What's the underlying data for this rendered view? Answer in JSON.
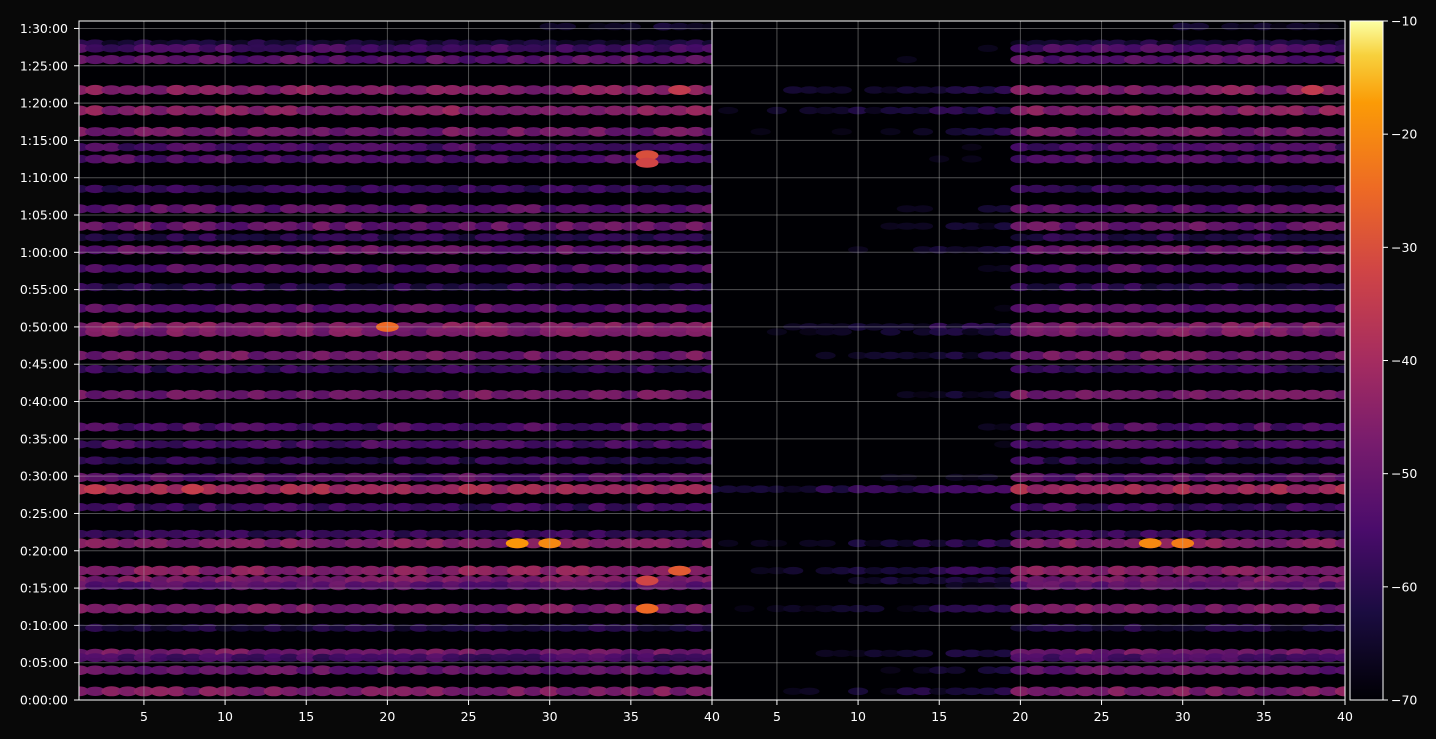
{
  "chart_data": {
    "type": "heatmap",
    "panels": [
      {
        "name": "",
        "x_range": [
          1,
          40
        ],
        "x_ticks": [
          "5",
          "10",
          "15",
          "20",
          "25",
          "30",
          "35",
          "40"
        ],
        "x_tick_values": [
          5,
          10,
          15,
          20,
          25,
          30,
          35,
          40
        ]
      },
      {
        "name": "",
        "x_range": [
          1,
          40
        ],
        "x_ticks": [
          "5",
          "10",
          "15",
          "20",
          "25",
          "30",
          "35",
          "40"
        ],
        "x_tick_values": [
          5,
          10,
          15,
          20,
          25,
          30,
          35,
          40
        ]
      }
    ],
    "y_range_seconds": [
      0,
      5460
    ],
    "y_ticks": [
      "0:00:00",
      "0:05:00",
      "0:10:00",
      "0:15:00",
      "0:20:00",
      "0:25:00",
      "0:30:00",
      "0:35:00",
      "0:40:00",
      "0:45:00",
      "0:50:00",
      "0:55:00",
      "1:00:00",
      "1:05:00",
      "1:10:00",
      "1:15:00",
      "1:20:00",
      "1:25:00",
      "1:30:00"
    ],
    "y_tick_seconds": [
      0,
      300,
      600,
      900,
      1200,
      1500,
      1800,
      2100,
      2400,
      2700,
      3000,
      3300,
      3600,
      3900,
      4200,
      4500,
      4800,
      5100,
      5400
    ],
    "colorbar": {
      "colormap": "inferno",
      "range": [
        -70,
        -10
      ],
      "ticks": [
        "−10",
        "−20",
        "−30",
        "−40",
        "−50",
        "−60",
        "−70"
      ],
      "tick_values": [
        -10,
        -20,
        -30,
        -40,
        -50,
        -60,
        -70
      ]
    },
    "grid": true,
    "bands": [
      {
        "t": 5415,
        "level": -65,
        "x_from": 30,
        "x_to": 40
      },
      {
        "t": 5280,
        "level": -63,
        "x_from": 1,
        "x_to": 40
      },
      {
        "t": 5240,
        "level": -55,
        "x_from": 1,
        "x_to": 40
      },
      {
        "t": 5150,
        "level": -52,
        "x_from": 1,
        "x_to": 40
      },
      {
        "t": 4905,
        "level": -45,
        "x_from": 1,
        "x_to": 40
      },
      {
        "t": 4740,
        "level": -44,
        "x_from": 1,
        "x_to": 40
      },
      {
        "t": 4570,
        "level": -48,
        "x_from": 1,
        "x_to": 40
      },
      {
        "t": 4445,
        "level": -55,
        "x_from": 1,
        "x_to": 40
      },
      {
        "t": 4350,
        "level": -54,
        "x_from": 1,
        "x_to": 40
      },
      {
        "t": 4110,
        "level": -58,
        "x_from": 1,
        "x_to": 40
      },
      {
        "t": 3950,
        "level": -52,
        "x_from": 1,
        "x_to": 40
      },
      {
        "t": 3810,
        "level": -50,
        "x_from": 1,
        "x_to": 40
      },
      {
        "t": 3720,
        "level": -60,
        "x_from": 1,
        "x_to": 40
      },
      {
        "t": 3620,
        "level": -50,
        "x_from": 1,
        "x_to": 40
      },
      {
        "t": 3470,
        "level": -53,
        "x_from": 1,
        "x_to": 40
      },
      {
        "t": 3320,
        "level": -60,
        "x_from": 1,
        "x_to": 40
      },
      {
        "t": 3150,
        "level": -52,
        "x_from": 1,
        "x_to": 40
      },
      {
        "t": 3000,
        "level": -45,
        "x_from": 1,
        "x_to": 40
      },
      {
        "t": 2960,
        "level": -47,
        "x_from": 1,
        "x_to": 40
      },
      {
        "t": 2770,
        "level": -48,
        "x_from": 1,
        "x_to": 40
      },
      {
        "t": 2660,
        "level": -58,
        "x_from": 1,
        "x_to": 40
      },
      {
        "t": 2455,
        "level": -48,
        "x_from": 1,
        "x_to": 40
      },
      {
        "t": 2195,
        "level": -54,
        "x_from": 1,
        "x_to": 40
      },
      {
        "t": 2055,
        "level": -55,
        "x_from": 1,
        "x_to": 40
      },
      {
        "t": 1925,
        "level": -60,
        "x_from": 1,
        "x_to": 40
      },
      {
        "t": 1790,
        "level": -52,
        "x_from": 1,
        "x_to": 40
      },
      {
        "t": 1695,
        "level": -40,
        "x_from": 1,
        "x_to": 40
      },
      {
        "t": 1550,
        "level": -57,
        "x_from": 1,
        "x_to": 40
      },
      {
        "t": 1335,
        "level": -58,
        "x_from": 1,
        "x_to": 40
      },
      {
        "t": 1260,
        "level": -45,
        "x_from": 1,
        "x_to": 40
      },
      {
        "t": 1040,
        "level": -44,
        "x_from": 1,
        "x_to": 40
      },
      {
        "t": 960,
        "level": -47,
        "x_from": 1,
        "x_to": 40
      },
      {
        "t": 920,
        "level": -52,
        "x_from": 1,
        "x_to": 40
      },
      {
        "t": 735,
        "level": -47,
        "x_from": 1,
        "x_to": 40
      },
      {
        "t": 580,
        "level": -62,
        "x_from": 1,
        "x_to": 40
      },
      {
        "t": 375,
        "level": -48,
        "x_from": 1,
        "x_to": 40
      },
      {
        "t": 340,
        "level": -56,
        "x_from": 1,
        "x_to": 40
      },
      {
        "t": 240,
        "level": -50,
        "x_from": 1,
        "x_to": 40
      },
      {
        "t": 70,
        "level": -46,
        "x_from": 1,
        "x_to": 40
      }
    ],
    "hotspots": [
      {
        "panel": 0,
        "x": 20,
        "t": 3000,
        "level": -25
      },
      {
        "panel": 0,
        "x": 36,
        "t": 4380,
        "level": -30
      },
      {
        "panel": 0,
        "x": 36,
        "t": 4320,
        "level": -32
      },
      {
        "panel": 0,
        "x": 28,
        "t": 1260,
        "level": -18
      },
      {
        "panel": 0,
        "x": 30,
        "t": 1260,
        "level": -20
      },
      {
        "panel": 0,
        "x": 2,
        "t": 1695,
        "level": -35
      },
      {
        "panel": 0,
        "x": 8,
        "t": 1695,
        "level": -34
      },
      {
        "panel": 0,
        "x": 36,
        "t": 735,
        "level": -25
      },
      {
        "panel": 0,
        "x": 36,
        "t": 960,
        "level": -32
      },
      {
        "panel": 0,
        "x": 38,
        "t": 1040,
        "level": -28
      },
      {
        "panel": 0,
        "x": 38,
        "t": 4905,
        "level": -35
      },
      {
        "panel": 1,
        "x": 28,
        "t": 1260,
        "level": -20
      },
      {
        "panel": 1,
        "x": 30,
        "t": 1260,
        "level": -22
      },
      {
        "panel": 1,
        "x": 38,
        "t": 4905,
        "level": -35
      }
    ]
  }
}
